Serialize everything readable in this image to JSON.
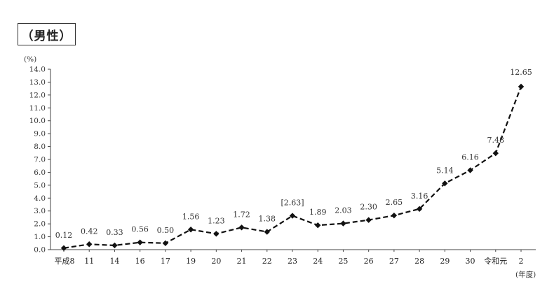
{
  "title": "（男性）",
  "chart_data": {
    "type": "line",
    "title": "（男性）",
    "ylabel": "(%)",
    "xlabel": "(年度)",
    "ylim": [
      0,
      14
    ],
    "yticks": [
      "0.0",
      "1.0",
      "2.0",
      "3.0",
      "4.0",
      "5.0",
      "6.0",
      "7.0",
      "8.0",
      "9.0",
      "10.0",
      "11.0",
      "12.0",
      "13.0",
      "14.0"
    ],
    "categories": [
      "平成8",
      "11",
      "14",
      "16",
      "17",
      "19",
      "20",
      "21",
      "22",
      "23",
      "24",
      "25",
      "26",
      "27",
      "28",
      "29",
      "30",
      "令和元",
      "2"
    ],
    "values": [
      0.12,
      0.42,
      0.33,
      0.56,
      0.5,
      1.56,
      1.23,
      1.72,
      1.38,
      2.63,
      1.89,
      2.03,
      2.3,
      2.65,
      3.16,
      5.14,
      6.16,
      7.48,
      12.65
    ],
    "labels": [
      "0.12",
      "0.42",
      "0.33",
      "0.56",
      "0.50",
      "1.56",
      "1.23",
      "1.72",
      "1.38",
      "[2.63]",
      "1.89",
      "2.03",
      "2.30",
      "2.65",
      "3.16",
      "5.14",
      "6.16",
      "7.48",
      "12.65"
    ],
    "grid": false,
    "line_style": "dashed",
    "marker": "diamond",
    "color": "#111111"
  }
}
